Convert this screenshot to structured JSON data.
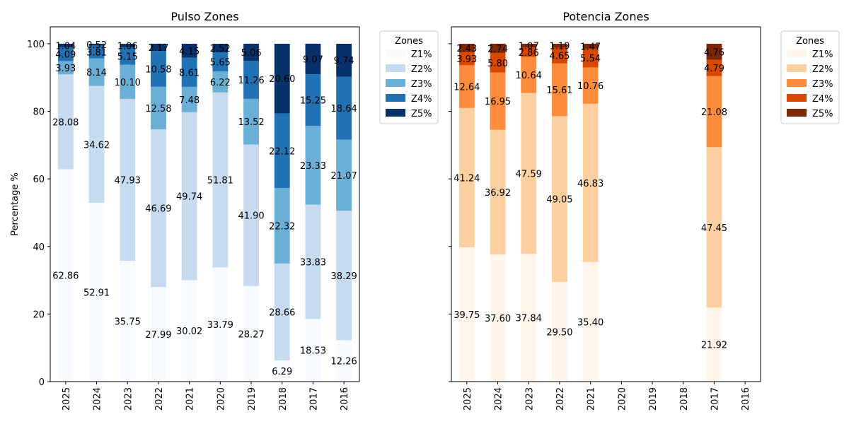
{
  "chart_data": [
    {
      "type": "bar",
      "stacked": true,
      "title": "Pulso Zones",
      "xlabel": "",
      "ylabel": "Percentage %",
      "ylim": [
        0,
        105
      ],
      "yticks": [
        "0",
        "20",
        "40",
        "60",
        "80",
        "100"
      ],
      "categories": [
        "2025",
        "2024",
        "2023",
        "2022",
        "2021",
        "2020",
        "2019",
        "2018",
        "2017",
        "2016"
      ],
      "legend_title": "Zones",
      "legend_position": "outside-right",
      "colormap": "Blues",
      "colors": [
        "#f7fbff",
        "#c6dbef",
        "#6baed6",
        "#2171b5",
        "#08306b"
      ],
      "series": [
        {
          "name": "Z1%",
          "values": [
            62.86,
            52.91,
            35.75,
            27.99,
            30.02,
            33.79,
            28.27,
            6.29,
            18.53,
            12.26
          ]
        },
        {
          "name": "Z2%",
          "values": [
            28.08,
            34.62,
            47.93,
            46.69,
            49.74,
            51.81,
            41.9,
            28.66,
            33.83,
            38.29
          ]
        },
        {
          "name": "Z3%",
          "values": [
            3.93,
            8.14,
            10.1,
            12.58,
            7.48,
            6.22,
            13.52,
            22.32,
            23.33,
            21.07
          ]
        },
        {
          "name": "Z4%",
          "values": [
            4.09,
            3.81,
            5.15,
            10.58,
            8.61,
            5.65,
            11.26,
            22.12,
            15.25,
            18.64
          ]
        },
        {
          "name": "Z5%",
          "values": [
            1.04,
            0.52,
            1.06,
            2.17,
            4.15,
            2.52,
            5.06,
            20.6,
            9.07,
            9.74
          ]
        }
      ]
    },
    {
      "type": "bar",
      "stacked": true,
      "title": "Potencia Zones",
      "xlabel": "",
      "ylabel": "",
      "ylim": [
        0,
        105
      ],
      "shared_y": true,
      "categories": [
        "2025",
        "2024",
        "2023",
        "2022",
        "2021",
        "2020",
        "2019",
        "2018",
        "2017",
        "2016"
      ],
      "legend_title": "Zones",
      "legend_position": "outside-right",
      "colormap": "Oranges",
      "colors": [
        "#fff5eb",
        "#fdd0a2",
        "#fd8d3c",
        "#d94801",
        "#7f2704"
      ],
      "series": [
        {
          "name": "Z1%",
          "values": [
            39.75,
            37.6,
            37.84,
            29.5,
            35.4,
            null,
            null,
            null,
            21.92,
            null
          ]
        },
        {
          "name": "Z2%",
          "values": [
            41.24,
            36.92,
            47.59,
            49.05,
            46.83,
            null,
            null,
            null,
            47.45,
            null
          ]
        },
        {
          "name": "Z3%",
          "values": [
            12.64,
            16.95,
            10.64,
            15.61,
            10.76,
            null,
            null,
            null,
            21.08,
            null
          ]
        },
        {
          "name": "Z4%",
          "values": [
            3.93,
            5.8,
            2.86,
            4.65,
            5.54,
            null,
            null,
            null,
            4.79,
            null
          ]
        },
        {
          "name": "Z5%",
          "values": [
            2.43,
            2.74,
            1.07,
            1.19,
            1.47,
            null,
            null,
            null,
            4.76,
            null
          ]
        }
      ]
    }
  ]
}
